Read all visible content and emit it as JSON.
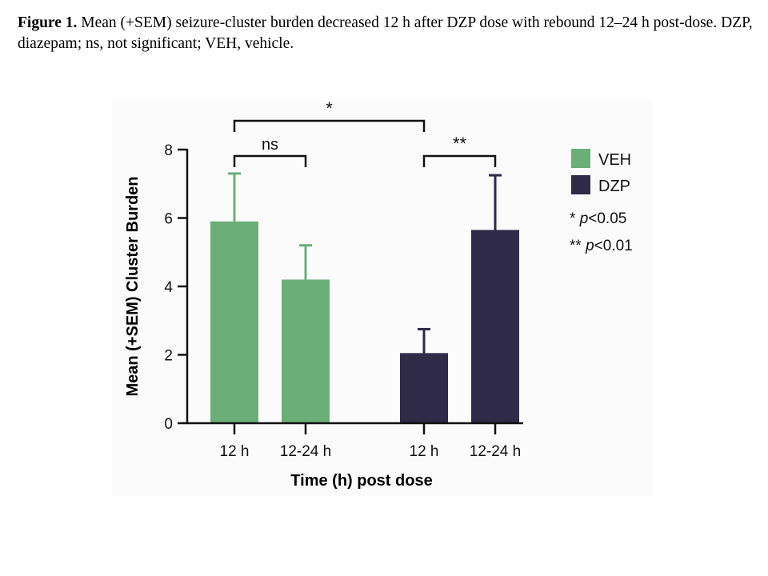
{
  "caption": {
    "label": "Figure 1.",
    "text": " Mean (+SEM) seizure-cluster burden decreased 12 h after DZP dose with rebound 12–24 h post-dose. DZP, diazepam; ns, not significant; VEH, vehicle."
  },
  "chart_data": {
    "type": "bar",
    "title": "",
    "xlabel": "Time (h) post dose",
    "ylabel": "Mean (+SEM) Cluster Burden",
    "ylim": [
      0,
      8
    ],
    "yticks": [
      "0",
      "2",
      "4",
      "6",
      "8"
    ],
    "grid": false,
    "legend_position": "right",
    "bars": [
      {
        "group": "VEH",
        "category": "12 h",
        "mean": 5.9,
        "sem_upper": 7.3,
        "color": "#6baf78"
      },
      {
        "group": "VEH",
        "category": "12-24 h",
        "mean": 4.2,
        "sem_upper": 5.2,
        "color": "#6baf78"
      },
      {
        "group": "DZP",
        "category": "12 h",
        "mean": 2.05,
        "sem_upper": 2.75,
        "color": "#2e2a48"
      },
      {
        "group": "DZP",
        "category": "12-24 h",
        "mean": 5.65,
        "sem_upper": 7.25,
        "color": "#2e2a48"
      }
    ],
    "legend": [
      {
        "label": "VEH",
        "color": "#6baf78"
      },
      {
        "label": "DZP",
        "color": "#2e2a48"
      }
    ],
    "significance": [
      {
        "from": 0,
        "to": 2,
        "label": "*"
      },
      {
        "from": 0,
        "to": 1,
        "label": "ns"
      },
      {
        "from": 2,
        "to": 3,
        "label": "**"
      }
    ],
    "annotations": [
      {
        "stars": "* ",
        "p": "p",
        "rest": "<0.05"
      },
      {
        "stars": "** ",
        "p": "p",
        "rest": "<0.01"
      }
    ]
  }
}
